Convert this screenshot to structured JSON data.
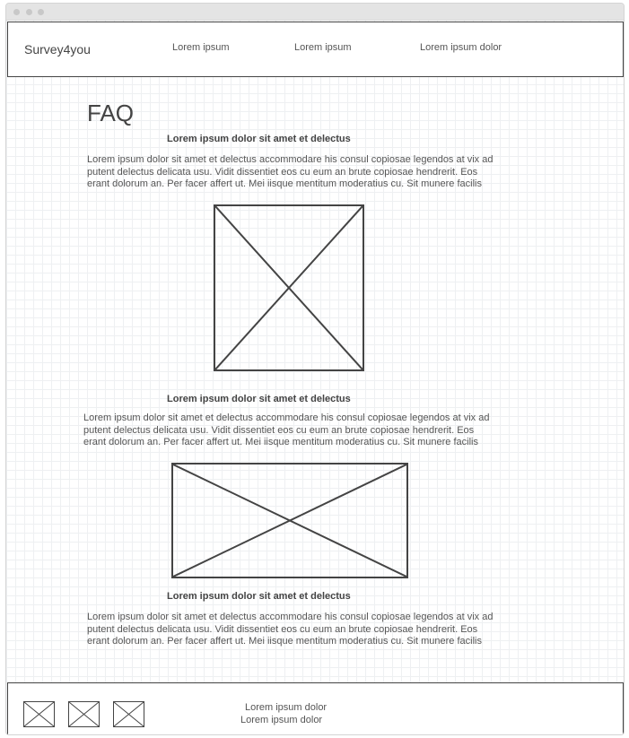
{
  "header": {
    "brand": "Survey4you",
    "nav": [
      "Lorem ipsum",
      "Lorem ipsum",
      "Lorem ipsum dolor"
    ]
  },
  "main": {
    "page_title": "FAQ",
    "sections": [
      {
        "title": "Lorem ipsum dolor sit amet et delectus",
        "lines": [
          "Lorem ipsum dolor sit amet et delectus accommodare his consul copiosae legendos at vix ad",
          "putent delectus delicata usu. Vidit dissentiet eos cu eum an brute copiosae hendrerit. Eos",
          "erant dolorum an. Per facer affert ut. Mei iisque mentitum moderatius cu. Sit munere facilis"
        ]
      },
      {
        "title": "Lorem ipsum dolor sit amet et delectus",
        "lines": [
          "Lorem ipsum dolor sit amet et delectus accommodare his consul copiosae legendos at vix ad",
          "putent delectus delicata usu. Vidit dissentiet eos cu eum an brute copiosae hendrerit. Eos",
          "erant dolorum an. Per facer affert ut. Mei iisque mentitum moderatius cu. Sit munere facilis"
        ]
      },
      {
        "title": "Lorem ipsum dolor sit amet et delectus",
        "lines": [
          "Lorem ipsum dolor sit amet et delectus accommodare his consul copiosae legendos at vix ad",
          "putent delectus delicata usu. Vidit dissentiet eos cu eum an brute copiosae hendrerit. Eos",
          "erant dolorum an. Per facer affert ut. Mei iisque mentitum moderatius cu. Sit munere facilis"
        ]
      }
    ]
  },
  "footer": {
    "lines": [
      "Lorem ipsum dolor",
      "Lorem ipsum dolor"
    ]
  },
  "colors": {
    "stroke": "#444444",
    "grid": "#eef0f2",
    "titlebar": "#e4e4e4"
  }
}
